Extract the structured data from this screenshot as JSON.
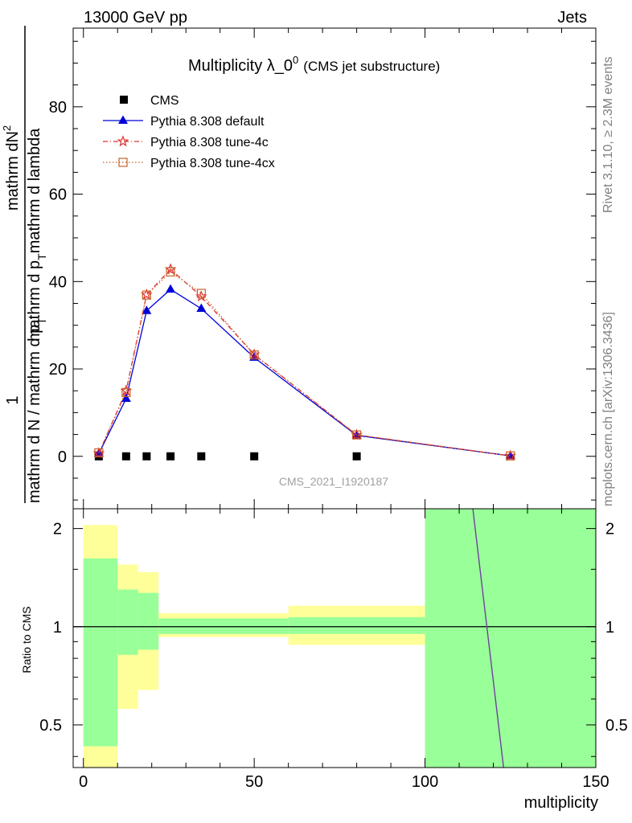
{
  "header": {
    "left": "13000 GeV pp",
    "right": "Jets"
  },
  "side_text": {
    "rivet": "Rivet 3.1.10, ≥ 2.3M events",
    "mcplots": "mcplots.cern.ch [arXiv:1306.3436]"
  },
  "chart_data": [
    {
      "type": "line",
      "title": "Multiplicity λ_0",
      "title_sup": "0",
      "title_suffix": "(CMS jet substructure)",
      "ylabel_parts": {
        "one": "1",
        "den": "mathrm d N / mathrm d p",
        "den_sub": "T",
        "frac2": "mathrm dN",
        "frac2_sup": "2",
        "frac2_den": "mathrm d p",
        "frac2_den_sub": "T",
        "frac2_den_rest": "mathrm d lambda"
      },
      "watermark": "CMS_2021_I1920187",
      "xlim": [
        -3,
        150
      ],
      "ylim": [
        -12,
        98
      ],
      "y_ticks": [
        0,
        20,
        40,
        60,
        80
      ],
      "y_tick_labels": [
        "0",
        "20",
        "40",
        "60",
        "80"
      ],
      "grid": false,
      "legend_position": "top-left",
      "series": [
        {
          "name": "CMS",
          "style": "data",
          "color": "#000000",
          "marker": "square",
          "x": [
            4.5,
            12.5,
            18.5,
            25.5,
            34.5,
            50,
            80
          ],
          "y": [
            0,
            0,
            0,
            0,
            0,
            0,
            0
          ]
        },
        {
          "name": "Pythia 8.308 default",
          "style": "solid",
          "color": "#0000d8",
          "marker": "triangle",
          "x": [
            4.5,
            12.5,
            18.5,
            25.5,
            34.5,
            50,
            80,
            125
          ],
          "y": [
            0.6,
            13.2,
            33.3,
            38.2,
            33.8,
            22.6,
            4.8,
            0.1
          ]
        },
        {
          "name": "Pythia 8.308 tune-4c",
          "style": "dashdot",
          "color": "#e03030",
          "marker": "star",
          "x": [
            4.5,
            12.5,
            18.5,
            25.5,
            34.5,
            50,
            80,
            125
          ],
          "y": [
            0.7,
            15.0,
            37.0,
            42.8,
            36.6,
            23.3,
            4.9,
            0.1
          ]
        },
        {
          "name": "Pythia 8.308 tune-4cx",
          "style": "dotted",
          "color": "#c8602a",
          "marker": "open-square",
          "x": [
            4.5,
            12.5,
            18.5,
            25.5,
            34.5,
            50,
            80,
            125
          ],
          "y": [
            0.8,
            14.6,
            36.9,
            42.2,
            37.3,
            23.2,
            4.9,
            0.1
          ]
        }
      ]
    },
    {
      "type": "line",
      "ylabel": "Ratio to CMS",
      "xlabel": "multiplicity",
      "xlim": [
        -3,
        150
      ],
      "ylim": [
        0.37,
        2.3
      ],
      "log_y": true,
      "x_ticks": [
        0,
        50,
        100,
        150
      ],
      "x_tick_labels": [
        "0",
        "50",
        "100",
        "150"
      ],
      "y_ticks": [
        0.5,
        1,
        2
      ],
      "y_tick_labels": [
        "0.5",
        "1",
        "2"
      ],
      "reference_line": 1,
      "bands": [
        {
          "x0": 0,
          "x1": 10,
          "yellow": [
            0.37,
            2.05
          ],
          "green": [
            0.43,
            1.62
          ]
        },
        {
          "x0": 10,
          "x1": 16,
          "yellow": [
            0.56,
            1.55
          ],
          "green": [
            0.82,
            1.3
          ]
        },
        {
          "x0": 16,
          "x1": 22,
          "yellow": [
            0.64,
            1.47
          ],
          "green": [
            0.85,
            1.27
          ]
        },
        {
          "x0": 22,
          "x1": 60,
          "yellow": [
            0.93,
            1.1
          ],
          "green": [
            0.95,
            1.06
          ]
        },
        {
          "x0": 60,
          "x1": 100,
          "yellow": [
            0.88,
            1.16
          ],
          "green": [
            0.95,
            1.07
          ]
        },
        {
          "x0": 100,
          "x1": 150,
          "yellow": [
            0.37,
            2.3
          ],
          "green": [
            0.37,
            2.3
          ]
        }
      ],
      "ratio_line": {
        "color": "#7040a0",
        "x": [
          114,
          123
        ],
        "y": [
          2.3,
          0.37
        ]
      }
    }
  ]
}
